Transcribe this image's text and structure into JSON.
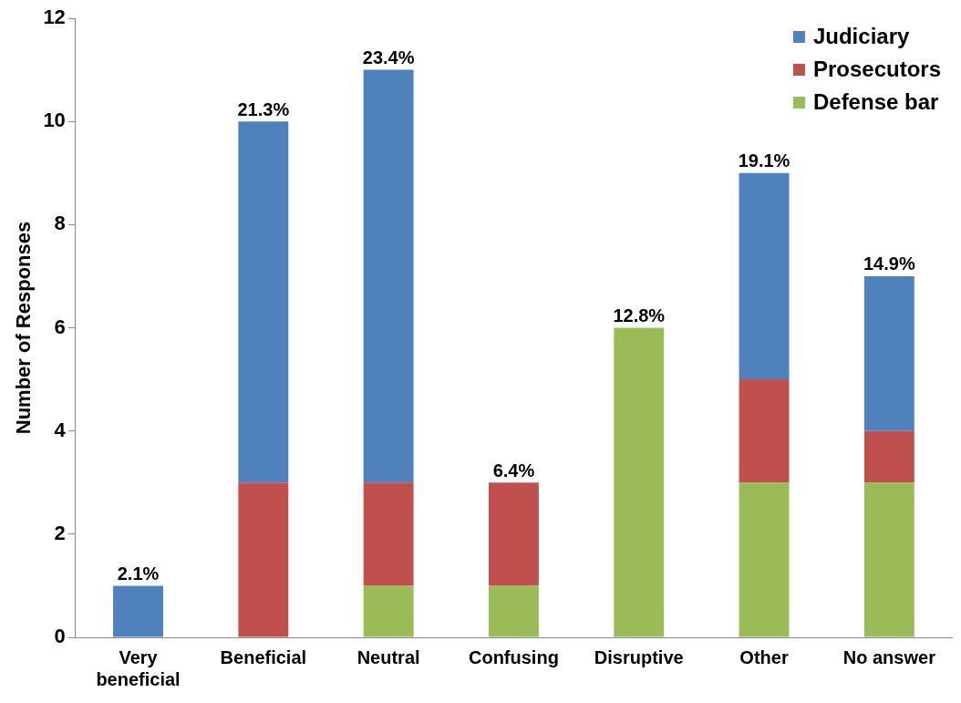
{
  "chart_data": {
    "type": "bar",
    "stacked": true,
    "ylabel": "Number of Responses",
    "categories": [
      "Very beneficial",
      "Beneficial",
      "Neutral",
      "Confusing",
      "Disruptive",
      "Other",
      "No answer"
    ],
    "series": [
      {
        "name": "Defense bar",
        "color": "#9bbb59",
        "values": [
          0,
          0,
          1,
          1,
          6,
          3,
          3
        ]
      },
      {
        "name": "Prosecutors",
        "color": "#c0504d",
        "values": [
          0,
          3,
          2,
          2,
          0,
          2,
          1
        ]
      },
      {
        "name": "Judiciary",
        "color": "#4f81bd",
        "values": [
          1,
          7,
          8,
          0,
          0,
          4,
          3
        ]
      }
    ],
    "annotations": [
      {
        "text": "2.1%",
        "x": "Very beneficial",
        "y": 1
      },
      {
        "text": "21.3%",
        "x": "Beneficial",
        "y": 10
      },
      {
        "text": "23.4%",
        "x": "Neutral",
        "y": 11
      },
      {
        "text": "6.4%",
        "x": "Confusing",
        "y": 3
      },
      {
        "text": "12.8%",
        "x": "Disruptive",
        "y": 6
      },
      {
        "text": "19.1%",
        "x": "Other",
        "y": 9
      },
      {
        "text": "14.9%",
        "x": "No answer",
        "y": 7
      }
    ],
    "ylim": [
      0,
      12
    ],
    "yticks": [
      0,
      2,
      4,
      6,
      8,
      10,
      12
    ],
    "grid": false,
    "legend": "top right"
  }
}
